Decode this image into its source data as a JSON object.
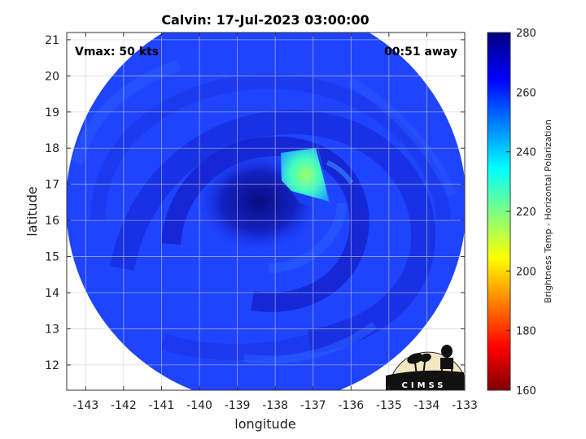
{
  "title": "Calvin: 17-Jul-2023 03:00:00",
  "vmax_label": "Vmax: 50 kts",
  "time_away_label": "00:51 away",
  "xlabel": "longitude",
  "ylabel": "latitude",
  "x_ticks": [
    "-143",
    "-142",
    "-141",
    "-140",
    "-139",
    "-138",
    "-137",
    "-136",
    "-135",
    "-134",
    "-133"
  ],
  "y_ticks": [
    "12",
    "13",
    "14",
    "15",
    "16",
    "17",
    "18",
    "19",
    "20",
    "21"
  ],
  "colorbar": {
    "title": "Brightness Temp - Horizontal Polarization",
    "ticks": [
      "280",
      "260",
      "240",
      "220",
      "200",
      "180",
      "160"
    ],
    "range": [
      160,
      280
    ],
    "colormap": "jet"
  },
  "logo_text": "CIMSS",
  "map_data": {
    "type": "microwave-brightness-temperature",
    "xlim": [
      -143.5,
      -133
    ],
    "ylim": [
      11.3,
      21.2
    ],
    "eye_center": {
      "lon": -138.3,
      "lat": 16.6
    },
    "swath_edge_warm_patch": {
      "lon": -137.6,
      "lat": 17.6,
      "temp": 235
    },
    "background_temp": 262,
    "colors": {
      "background": "#1e44ff",
      "dark_band": "#1216c0",
      "eye": "#0c1090",
      "warm_patch": "#5dffb0"
    }
  }
}
